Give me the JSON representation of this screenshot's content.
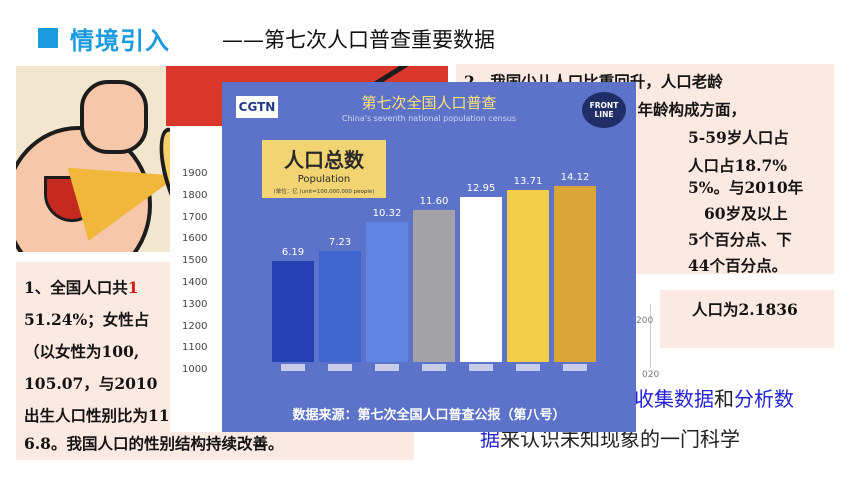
{
  "header": {
    "title": "情境引入",
    "subtitle": "——第七次人口普查重要数据"
  },
  "left_box": {
    "line1_start": "1、全国人口共",
    "line1_red": "1",
    "line2": "51.24%；女性占",
    "line3": "（以女性为100,",
    "line4": "105.07，与2010",
    "line5": "出生人口性别比为111",
    "line6": "6.8。我国人口的性别结构持续改善。"
  },
  "right_box": {
    "line1": "2、我国少儿人口比重回升，人口老龄",
    "line2": "。年龄构成方面，",
    "line3": "5-59岁人口占",
    "line4": "人口占18.7%",
    "line5": "5%。与2010年",
    "line6": "60岁及以上",
    "line7": "5个百分点、下",
    "line8": "44个百分点。",
    "line9": "人口为2.1836"
  },
  "definition": {
    "part1_blue": "收集数据",
    "part1_mid": "和",
    "part1_blue2": "分析数",
    "part2_blue": "据",
    "part2_rest": "来认识未知现象的一门科学"
  },
  "faint_axis": {
    "tick1": "200",
    "tick2": "020"
  },
  "outer_axis_ticks": [
    "1900",
    "1800",
    "1700",
    "1600",
    "1500",
    "1400",
    "1300",
    "1200",
    "1100",
    "1000"
  ],
  "panel": {
    "logo": "CGTN",
    "title_zh": "第七次全国人口普查",
    "title_en": "China's seventh national population census",
    "frontline": "FRONT LINE",
    "label_zh": "人口总数",
    "label_en": "Population",
    "label_unit": "(单位：亿 (unit=100,000,000 people)",
    "source": "数据来源：第七次全国人口普查公报（第八号）"
  },
  "chart_data": {
    "type": "bar",
    "title": "人口总数",
    "values": [
      6.19,
      7.23,
      10.32,
      11.6,
      12.95,
      13.71,
      14.12
    ],
    "colors": [
      "#2440b4",
      "#3f66cf",
      "#5f85e3",
      "#a3a3a6",
      "#ffffff",
      "#f4ce48",
      "#d9a536"
    ]
  }
}
